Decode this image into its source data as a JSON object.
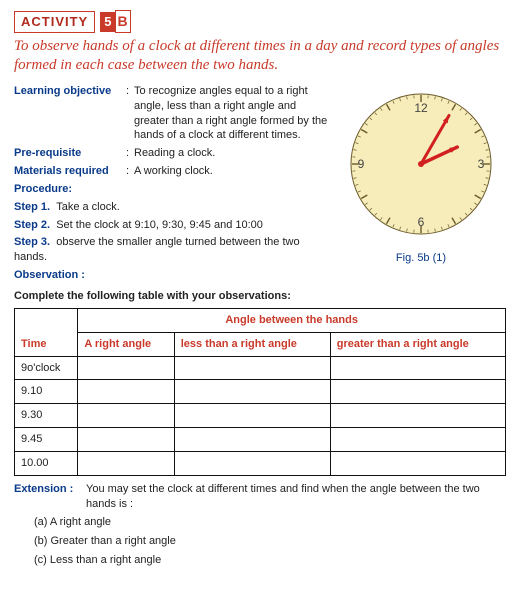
{
  "header": {
    "label": "ACTIVITY",
    "num": "5",
    "letter": "B"
  },
  "title": "To observe hands of a clock at different times in a day and record types of angles formed in each case between the two hands.",
  "objective": {
    "label": "Learning objective",
    "text": "To recognize angles equal to a right angle, less than a right angle and greater than a right angle formed by the hands of a clock at different times."
  },
  "prereq": {
    "label": "Pre-requisite",
    "text": "Reading a clock."
  },
  "materials": {
    "label": "Materials required",
    "text": "A working clock."
  },
  "procedure_label": "Procedure:",
  "steps": [
    {
      "label": "Step 1.",
      "text": "Take a clock."
    },
    {
      "label": "Step 2.",
      "text": "Set the clock at 9:10, 9:30, 9:45 and 10:00"
    },
    {
      "label": "Step 3.",
      "text": "observe the smaller angle turned between the two hands."
    }
  ],
  "observation_label": "Observation :",
  "table_intro": "Complete the following table with your observations:",
  "figure_label": "Fig. 5b (1)",
  "clock": {
    "face_fill": "#f6edba",
    "face_stroke": "#6a5a2a",
    "tick_color": "#6a5a2a",
    "num_color": "#444",
    "hand_color": "#d21f1f",
    "numbers": {
      "12": "12",
      "3": "3",
      "6": "6",
      "9": "9"
    },
    "hour_angle_deg": 65,
    "minute_angle_deg": 30,
    "size": 160
  },
  "table": {
    "header_group": "Angle between the hands",
    "col_time": "Time",
    "col_a": "A right angle",
    "col_b": "less than a right angle",
    "col_c": "greater than a right angle",
    "rows": [
      "9o'clock",
      "9.10",
      "9.30",
      "9.45",
      "10.00"
    ]
  },
  "extension": {
    "label": "Extension :",
    "text": "You may set the clock at different times and find when the angle between the two hands is :",
    "opts": [
      "(a)  A right angle",
      "(b)  Greater than a right angle",
      "(c)  Less than a right angle"
    ]
  }
}
